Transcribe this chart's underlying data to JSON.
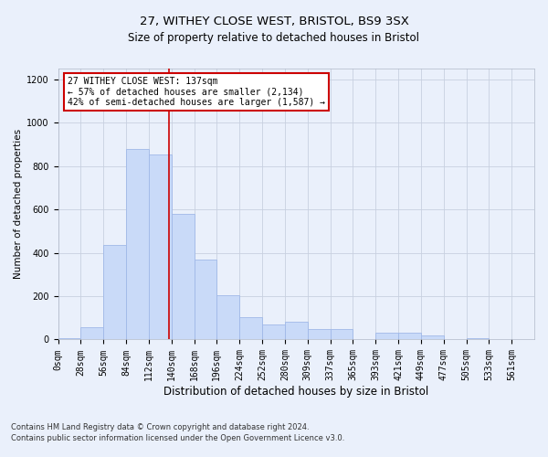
{
  "title1": "27, WITHEY CLOSE WEST, BRISTOL, BS9 3SX",
  "title2": "Size of property relative to detached houses in Bristol",
  "xlabel": "Distribution of detached houses by size in Bristol",
  "ylabel": "Number of detached properties",
  "bin_labels": [
    "0sqm",
    "28sqm",
    "56sqm",
    "84sqm",
    "112sqm",
    "140sqm",
    "168sqm",
    "196sqm",
    "224sqm",
    "252sqm",
    "280sqm",
    "309sqm",
    "337sqm",
    "365sqm",
    "393sqm",
    "421sqm",
    "449sqm",
    "477sqm",
    "505sqm",
    "533sqm",
    "561sqm"
  ],
  "bar_heights": [
    5,
    55,
    435,
    880,
    855,
    580,
    370,
    205,
    105,
    70,
    80,
    50,
    50,
    0,
    30,
    30,
    20,
    0,
    5,
    0,
    0
  ],
  "bar_color": "#c9daf8",
  "bar_edge_color": "#a0b8e8",
  "grid_color": "#c8d0e0",
  "ref_line_x": 4.89,
  "ref_line_color": "#cc0000",
  "annotation_text": "27 WITHEY CLOSE WEST: 137sqm\n← 57% of detached houses are smaller (2,134)\n42% of semi-detached houses are larger (1,587) →",
  "annotation_box_color": "#ffffff",
  "annotation_box_edge_color": "#cc0000",
  "footer_line1": "Contains HM Land Registry data © Crown copyright and database right 2024.",
  "footer_line2": "Contains public sector information licensed under the Open Government Licence v3.0.",
  "ylim": [
    0,
    1250
  ],
  "yticks": [
    0,
    200,
    400,
    600,
    800,
    1000,
    1200
  ],
  "background_color": "#eaf0fb",
  "title1_fontsize": 9.5,
  "title2_fontsize": 8.5,
  "xlabel_fontsize": 8.5,
  "ylabel_fontsize": 7.5,
  "tick_fontsize": 7,
  "footer_fontsize": 6,
  "annotation_fontsize": 7
}
